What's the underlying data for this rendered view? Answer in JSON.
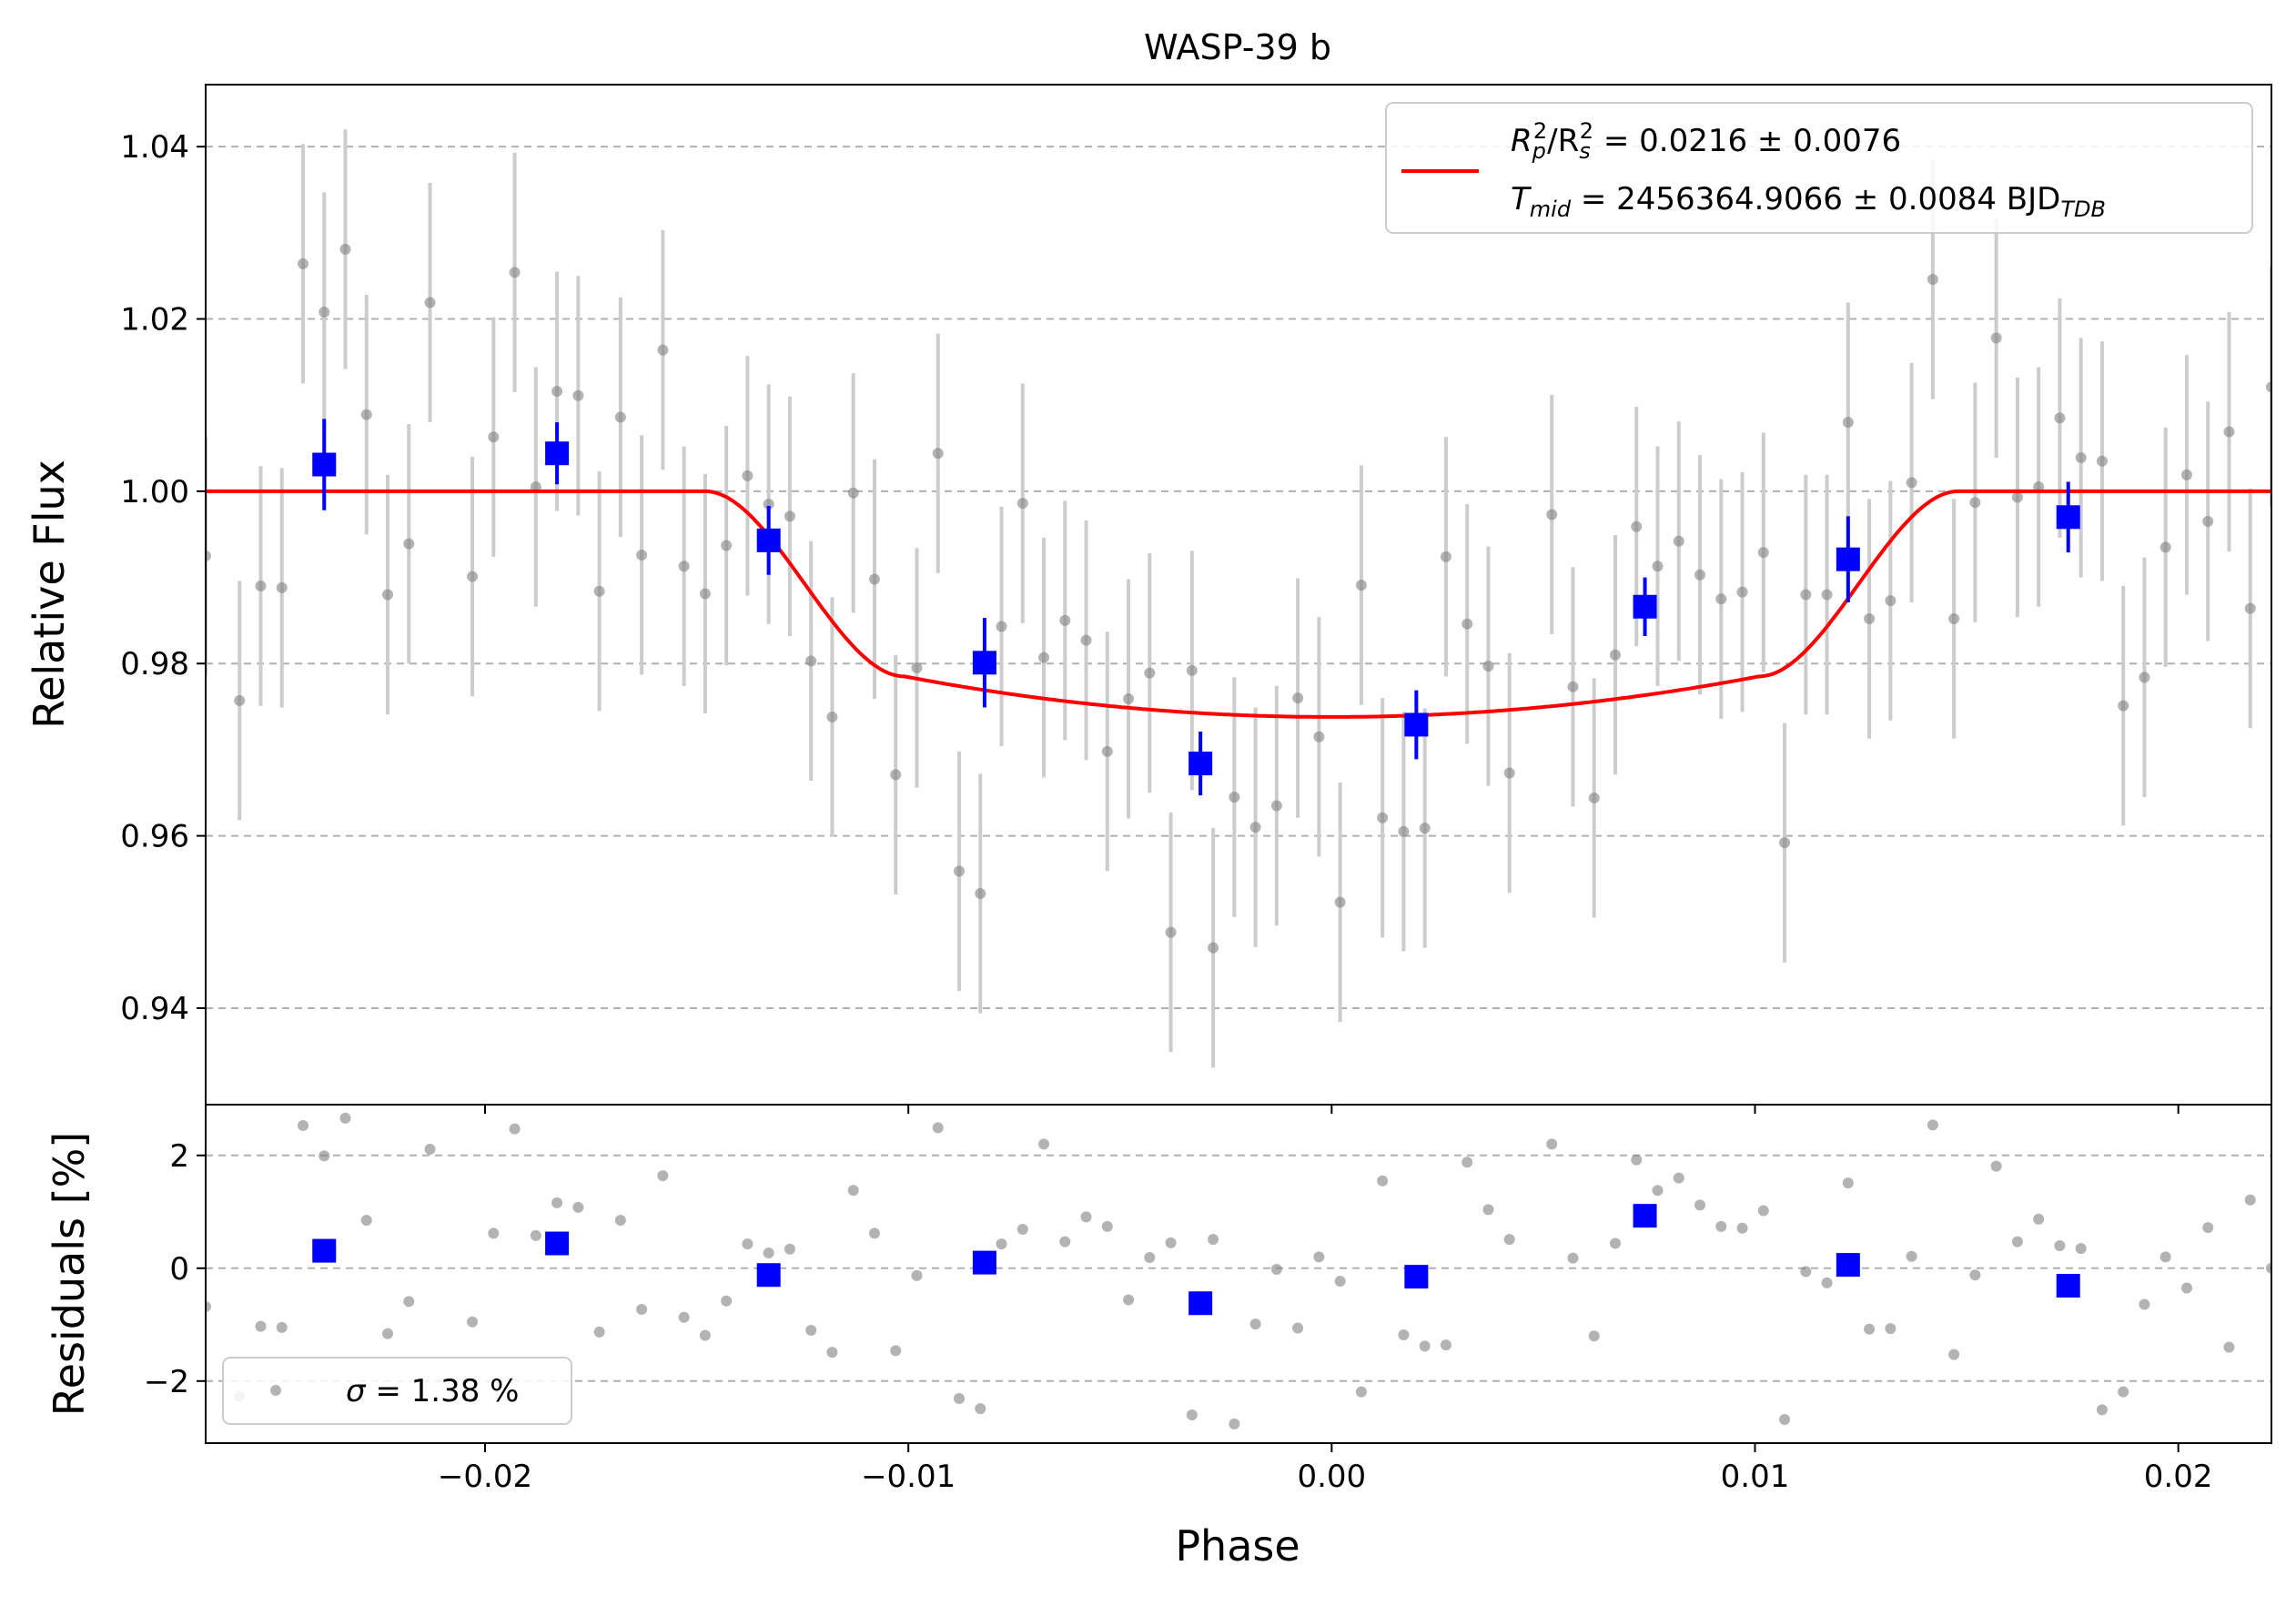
{
  "chart_data": {
    "type": "scatter",
    "title": "WASP-39 b",
    "xlabel": "Phase",
    "xlim": [
      -0.0266,
      0.0222
    ],
    "x_ticks": [
      "−0.02",
      "−0.01",
      "0.00",
      "0.01",
      "0.02"
    ],
    "x_tick_values": [
      -0.02,
      -0.01,
      0.0,
      0.01,
      0.02
    ],
    "grid": "horizontal dashed",
    "top_panel": {
      "ylabel": "Relative Flux",
      "ylim": [
        0.9288,
        1.0472
      ],
      "y_ticks": [
        "0.94",
        "0.96",
        "0.98",
        "1.00",
        "1.02",
        "1.04"
      ],
      "y_tick_values": [
        0.94,
        0.96,
        0.98,
        1.0,
        1.02,
        1.04
      ],
      "legend_placement": "upper-right",
      "legend": {
        "line1": {
          "lhs": "R",
          "sub1": "p",
          "sup1": "2",
          "mid": "/R",
          "sub2": "s",
          "sup2": "2",
          "rest": " = 0.0216 ± 0.0076"
        },
        "line2": {
          "lhs": "T",
          "sub1": "mid",
          "rest": " = 2456364.9066 ± 0.0084 BJD",
          "sub2": "TDB"
        }
      },
      "model_params": {
        "depth": 0.0262,
        "contact_half_widths": [
          0.0148,
          0.0101
        ]
      },
      "raw": {
        "x": [
          -0.0266,
          -0.0258,
          -0.0253,
          -0.0248,
          -0.0243,
          -0.0238,
          -0.0233,
          -0.0228,
          -0.0223,
          -0.0218,
          -0.0213,
          -0.0203,
          -0.0198,
          -0.0193,
          -0.0188,
          -0.0183,
          -0.0178,
          -0.0173,
          -0.0168,
          -0.0163,
          -0.0158,
          -0.0153,
          -0.0148,
          -0.0143,
          -0.0138,
          -0.0133,
          -0.0128,
          -0.0123,
          -0.0118,
          -0.0113,
          -0.0108,
          -0.0103,
          -0.0098,
          -0.0093,
          -0.0088,
          -0.0083,
          -0.0078,
          -0.0073,
          -0.0068,
          -0.0063,
          -0.0058,
          -0.0053,
          -0.0048,
          -0.0043,
          -0.0038,
          -0.0033,
          -0.0028,
          -0.0023,
          -0.0018,
          -0.0013,
          -0.0008,
          -0.0003,
          0.0002,
          0.0007,
          0.0012,
          0.0017,
          0.0022,
          0.0027,
          0.0032,
          0.0037,
          0.0042,
          0.0052,
          0.0057,
          0.0062,
          0.0067,
          0.0072,
          0.0077,
          0.0082,
          0.0087,
          0.0092,
          0.0097,
          0.0102,
          0.0107,
          0.0112,
          0.0117,
          0.0122,
          0.0127,
          0.0132,
          0.0137,
          0.0142,
          0.0147,
          0.0152,
          0.0157,
          0.0162,
          0.0167,
          0.0172,
          0.0177,
          0.0182,
          0.0187,
          0.0192,
          0.0197,
          0.0202,
          0.0207,
          0.0212,
          0.0217,
          0.0222
        ],
        "y": [
          0.9925,
          0.9757,
          0.989,
          0.9888,
          1.0264,
          1.0208,
          1.0281,
          1.0089,
          0.988,
          0.9939,
          1.0219,
          0.9901,
          1.0063,
          1.0254,
          1.0005,
          1.0116,
          1.0111,
          0.9884,
          1.0086,
          0.9926,
          1.0164,
          0.9913,
          0.9881,
          0.9937,
          1.0018,
          0.9985,
          0.9971,
          0.9803,
          0.9738,
          0.9998,
          0.9898,
          0.9671,
          0.9795,
          1.0044,
          0.9559,
          0.9533,
          0.9843,
          0.9986,
          0.9807,
          0.985,
          0.9827,
          0.9698,
          0.9759,
          0.9789,
          0.9488,
          0.9792,
          0.947,
          0.9645,
          0.961,
          0.9635,
          0.976,
          0.9715,
          0.9523,
          0.9891,
          0.9621,
          0.9605,
          0.9609,
          0.9924,
          0.9846,
          0.9797,
          0.9673,
          0.9973,
          0.9773,
          0.9644,
          0.981,
          0.9959,
          0.9913,
          0.9942,
          0.9903,
          0.9875,
          0.9883,
          0.9929,
          0.9592,
          0.988,
          0.988,
          1.008,
          0.9852,
          0.9873,
          1.001,
          1.0246,
          0.9852,
          0.9987,
          1.0178,
          0.9993,
          1.0005,
          1.0085,
          1.0039,
          1.0035,
          0.9751,
          0.9784,
          0.9935,
          1.0019,
          0.9965,
          1.0069,
          0.9864,
          1.0121
        ],
        "yerr": 0.0139
      },
      "binned": {
        "x": [
          -0.0238,
          -0.0183,
          -0.0133,
          -0.0082,
          -0.0031,
          0.002,
          0.0074,
          0.0122,
          0.0174
        ],
        "y": [
          1.0031,
          1.0044,
          0.9943,
          0.9801,
          0.9684,
          0.9729,
          0.9866,
          0.9921,
          0.997
        ],
        "yerr": [
          0.0053,
          0.0036,
          0.004,
          0.0052,
          0.0037,
          0.004,
          0.0034,
          0.005,
          0.0041
        ]
      }
    },
    "bottom_panel": {
      "ylabel": "Residuals [%]",
      "ylim": [
        -3.1,
        2.9
      ],
      "y_ticks": [
        "−2",
        "0",
        "2"
      ],
      "y_tick_values": [
        -2,
        0,
        2
      ],
      "legend_placement": "lower-left",
      "legend_prefix": "σ",
      "legend_value": " = 1.38 %",
      "raw": {
        "x": [
          -0.0266,
          -0.0258,
          -0.0253,
          -0.0248,
          -0.0243,
          -0.0238,
          -0.0233,
          -0.0228,
          -0.0223,
          -0.0218,
          -0.0213,
          -0.0203,
          -0.0198,
          -0.0193,
          -0.0188,
          -0.0183,
          -0.0178,
          -0.0173,
          -0.0168,
          -0.0163,
          -0.0158,
          -0.0153,
          -0.0148,
          -0.0143,
          -0.0138,
          -0.0133,
          -0.0128,
          -0.0123,
          -0.0118,
          -0.0113,
          -0.0108,
          -0.0103,
          -0.0098,
          -0.0093,
          -0.0088,
          -0.0083,
          -0.0078,
          -0.0073,
          -0.0068,
          -0.0063,
          -0.0058,
          -0.0053,
          -0.0048,
          -0.0043,
          -0.0038,
          -0.0033,
          -0.0028,
          -0.0023,
          -0.0018,
          -0.0013,
          -0.0008,
          -0.0003,
          0.0002,
          0.0007,
          0.0012,
          0.0017,
          0.0022,
          0.0027,
          0.0032,
          0.0037,
          0.0042,
          0.0052,
          0.0057,
          0.0062,
          0.0067,
          0.0072,
          0.0077,
          0.0082,
          0.0087,
          0.0092,
          0.0097,
          0.0102,
          0.0107,
          0.0112,
          0.0117,
          0.0122,
          0.0127,
          0.0132,
          0.0137,
          0.0142,
          0.0147,
          0.0152,
          0.0157,
          0.0162,
          0.0167,
          0.0172,
          0.0177,
          0.0182,
          0.0187,
          0.0192,
          0.0197,
          0.0202,
          0.0207,
          0.0212,
          0.0217,
          0.0222
        ],
        "y": [
          -0.68,
          -2.27,
          -1.03,
          -1.05,
          2.53,
          1.99,
          2.66,
          0.85,
          -1.16,
          -0.59,
          2.11,
          -0.95,
          0.62,
          2.47,
          0.58,
          1.16,
          1.08,
          -1.13,
          0.85,
          -0.73,
          1.64,
          -0.87,
          -1.19,
          -0.58,
          0.43,
          0.27,
          0.34,
          -1.1,
          -1.49,
          1.38,
          0.62,
          -1.46,
          -0.13,
          2.49,
          -2.31,
          -2.49,
          0.43,
          0.69,
          2.2,
          0.47,
          0.91,
          0.74,
          -0.56,
          0.19,
          0.45,
          -2.6,
          0.51,
          -2.76,
          -0.99,
          -0.02,
          -1.06,
          0.2,
          -0.23,
          -2.19,
          1.55,
          -1.18,
          -1.38,
          -1.36,
          1.88,
          1.04,
          0.51,
          2.2,
          0.18,
          -1.2,
          0.44,
          1.92,
          1.38,
          1.6,
          1.12,
          0.74,
          0.71,
          1.02,
          -2.68,
          -0.06,
          -0.26,
          1.51,
          -1.08,
          -1.07,
          0.21,
          2.54,
          -1.53,
          -0.12,
          1.81,
          0.47,
          0.87,
          0.4,
          0.35,
          -2.51,
          -2.19,
          -0.64,
          0.2,
          -0.35,
          0.72,
          -1.4,
          1.21,
          0.0
        ]
      },
      "binned": {
        "x": [
          -0.0238,
          -0.0183,
          -0.0133,
          -0.0082,
          -0.0031,
          0.002,
          0.0074,
          0.0122,
          0.0174
        ],
        "y": [
          0.31,
          0.44,
          -0.12,
          0.1,
          -0.62,
          -0.15,
          0.93,
          0.06,
          -0.31
        ]
      }
    },
    "colors": {
      "model": "#ff0000",
      "binned": "#0000ff",
      "raw_point": "#808080",
      "raw_errbar": "#cccccc",
      "grid": "#b0b0b0"
    }
  }
}
